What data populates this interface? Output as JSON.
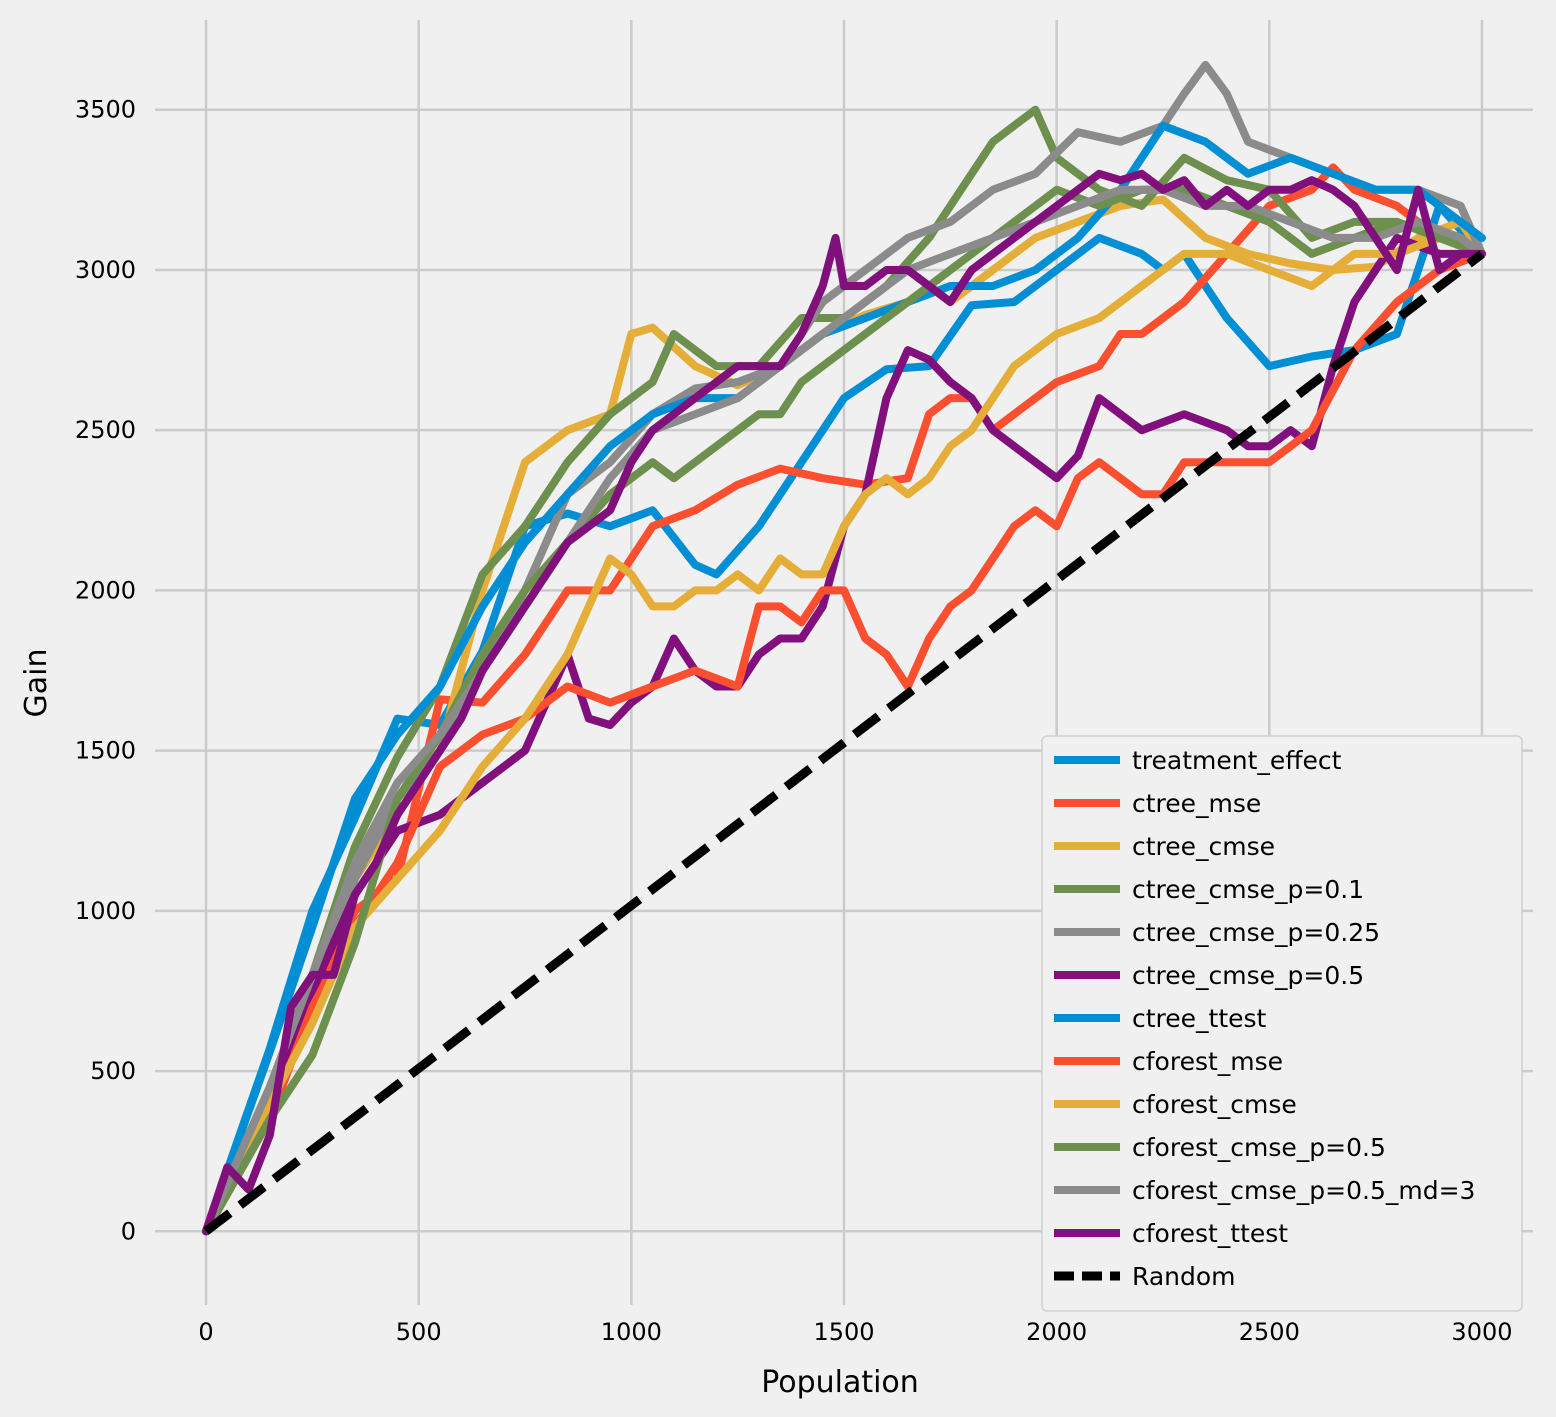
{
  "chart_data": {
    "type": "line",
    "xlabel": "Population",
    "ylabel": "Gain",
    "xlim": [
      -120,
      3120
    ],
    "ylim": [
      -230,
      3780
    ],
    "xticks": [
      0,
      500,
      1000,
      1500,
      2000,
      2500,
      3000
    ],
    "xtick_labels": [
      "0",
      "500",
      "1000",
      "1500",
      "2000",
      "2500",
      "3000"
    ],
    "yticks": [
      0,
      500,
      1000,
      1500,
      2000,
      2500,
      3000,
      3500
    ],
    "ytick_labels": [
      "0",
      "500",
      "1000",
      "1500",
      "2000",
      "2500",
      "3000",
      "3500"
    ],
    "grid": true,
    "legend_position": "lower-right",
    "series": [
      {
        "name": "treatment_effect",
        "color": "#008fd5",
        "x": [
          0,
          150,
          250,
          350,
          450,
          550,
          650,
          750,
          850,
          950,
          1050,
          1150,
          1200,
          1300,
          1400,
          1500,
          1600,
          1700,
          1800,
          1900,
          2000,
          2100,
          2200,
          2250,
          2300,
          2400,
          2500,
          2600,
          2700,
          2800,
          2900,
          3000
        ],
        "y": [
          0,
          570,
          1000,
          1290,
          1600,
          1580,
          1810,
          2200,
          2240,
          2200,
          2250,
          2080,
          2050,
          2200,
          2400,
          2600,
          2690,
          2700,
          2890,
          2900,
          3000,
          3100,
          3050,
          3000,
          3050,
          2850,
          2700,
          2730,
          2750,
          2800,
          3200,
          3050
        ]
      },
      {
        "name": "ctree_mse",
        "color": "#fc4f30",
        "x": [
          0,
          150,
          250,
          350,
          450,
          550,
          650,
          750,
          850,
          950,
          1050,
          1150,
          1250,
          1350,
          1450,
          1550,
          1650,
          1700,
          1750,
          1800,
          1850,
          1900,
          2000,
          2100,
          2150,
          2200,
          2300,
          2400,
          2500,
          2600,
          2650,
          2700,
          2800,
          2900,
          3000
        ],
        "y": [
          0,
          400,
          700,
          1000,
          1100,
          1660,
          1650,
          1800,
          2000,
          2000,
          2200,
          2250,
          2330,
          2380,
          2350,
          2330,
          2350,
          2550,
          2600,
          2600,
          2500,
          2550,
          2650,
          2700,
          2800,
          2800,
          2900,
          3050,
          3200,
          3250,
          3320,
          3250,
          3200,
          3100,
          3050
        ]
      },
      {
        "name": "ctree_cmse",
        "color": "#e5ae38",
        "x": [
          0,
          150,
          250,
          350,
          450,
          550,
          650,
          750,
          850,
          950,
          1000,
          1050,
          1150,
          1250,
          1350,
          1450,
          1550,
          1650,
          1700,
          1750,
          1850,
          1950,
          2050,
          2150,
          2250,
          2350,
          2450,
          2550,
          2650,
          2750,
          2850,
          2950,
          3000
        ],
        "y": [
          0,
          450,
          750,
          1100,
          1300,
          1500,
          2000,
          2400,
          2500,
          2550,
          2800,
          2820,
          2700,
          2640,
          2700,
          2800,
          2860,
          2900,
          2950,
          2900,
          3000,
          3100,
          3150,
          3200,
          3220,
          3100,
          3050,
          3020,
          3000,
          3010,
          3100,
          3150,
          3050
        ]
      },
      {
        "name": "ctree_cmse_p=0.1",
        "color": "#6d904f",
        "x": [
          0,
          150,
          250,
          350,
          450,
          550,
          650,
          750,
          850,
          950,
          1050,
          1100,
          1150,
          1200,
          1300,
          1400,
          1500,
          1600,
          1700,
          1800,
          1850,
          1900,
          1950,
          2000,
          2100,
          2200,
          2300,
          2400,
          2500,
          2600,
          2700,
          2800,
          2900,
          3000
        ],
        "y": [
          0,
          450,
          800,
          1200,
          1480,
          1700,
          2050,
          2200,
          2400,
          2550,
          2650,
          2800,
          2750,
          2700,
          2700,
          2850,
          2850,
          2950,
          3100,
          3300,
          3400,
          3450,
          3500,
          3350,
          3250,
          3200,
          3350,
          3280,
          3250,
          3100,
          3150,
          3150,
          3100,
          3050
        ]
      },
      {
        "name": "ctree_cmse_p=0.25",
        "color": "#8b8b8b",
        "x": [
          0,
          150,
          250,
          350,
          450,
          550,
          650,
          750,
          850,
          950,
          1050,
          1150,
          1250,
          1350,
          1450,
          1550,
          1650,
          1750,
          1850,
          1950,
          2050,
          2150,
          2250,
          2300,
          2350,
          2400,
          2450,
          2550,
          2650,
          2750,
          2850,
          2950,
          3000
        ],
        "y": [
          0,
          400,
          750,
          1100,
          1350,
          1500,
          1750,
          2000,
          2300,
          2400,
          2550,
          2630,
          2650,
          2700,
          2900,
          3000,
          3100,
          3150,
          3250,
          3300,
          3430,
          3400,
          3450,
          3550,
          3640,
          3550,
          3400,
          3350,
          3300,
          3250,
          3250,
          3200,
          3050
        ]
      },
      {
        "name": "ctree_cmse_p=0.5",
        "color": "#810f7c",
        "x": [
          0,
          150,
          250,
          350,
          450,
          550,
          650,
          750,
          800,
          850,
          900,
          950,
          1000,
          1050,
          1100,
          1150,
          1200,
          1250,
          1300,
          1350,
          1400,
          1450,
          1500,
          1550,
          1600,
          1650,
          1700,
          1750,
          1800,
          1850,
          1900,
          1950,
          2000,
          2050,
          2100,
          2150,
          2200,
          2300,
          2400,
          2450,
          2500,
          2550,
          2600,
          2650,
          2700,
          2800,
          2900,
          3000
        ],
        "y": [
          0,
          400,
          750,
          1050,
          1250,
          1300,
          1400,
          1500,
          1650,
          1800,
          1600,
          1580,
          1650,
          1700,
          1850,
          1750,
          1700,
          1700,
          1800,
          1850,
          1850,
          1950,
          2200,
          2300,
          2600,
          2750,
          2720,
          2650,
          2600,
          2500,
          2450,
          2400,
          2350,
          2420,
          2600,
          2550,
          2500,
          2550,
          2500,
          2450,
          2450,
          2500,
          2450,
          2700,
          2900,
          3100,
          3050,
          3050
        ]
      },
      {
        "name": "ctree_ttest",
        "color": "#008fd5",
        "x": [
          0,
          150,
          250,
          350,
          450,
          550,
          650,
          750,
          850,
          950,
          1050,
          1150,
          1250,
          1350,
          1450,
          1550,
          1650,
          1750,
          1850,
          1950,
          2050,
          2150,
          2250,
          2350,
          2450,
          2550,
          2650,
          2750,
          2850,
          2950,
          3000
        ],
        "y": [
          0,
          560,
          950,
          1350,
          1550,
          1700,
          1950,
          2150,
          2300,
          2450,
          2550,
          2600,
          2600,
          2700,
          2800,
          2850,
          2900,
          2950,
          2950,
          3000,
          3100,
          3250,
          3450,
          3400,
          3300,
          3350,
          3300,
          3250,
          3250,
          3150,
          3100
        ]
      },
      {
        "name": "cforest_mse",
        "color": "#fc4f30",
        "x": [
          0,
          150,
          250,
          350,
          450,
          550,
          650,
          750,
          850,
          950,
          1050,
          1150,
          1250,
          1300,
          1350,
          1400,
          1450,
          1500,
          1550,
          1600,
          1650,
          1700,
          1750,
          1800,
          1850,
          1900,
          1950,
          2000,
          2050,
          2100,
          2150,
          2200,
          2250,
          2300,
          2350,
          2400,
          2450,
          2500,
          2550,
          2600,
          2700,
          2800,
          2900,
          3000
        ],
        "y": [
          0,
          350,
          700,
          950,
          1150,
          1450,
          1550,
          1600,
          1700,
          1650,
          1700,
          1750,
          1700,
          1950,
          1950,
          1900,
          2000,
          2000,
          1850,
          1800,
          1700,
          1850,
          1950,
          2000,
          2100,
          2200,
          2250,
          2200,
          2350,
          2400,
          2350,
          2300,
          2300,
          2400,
          2400,
          2400,
          2400,
          2400,
          2450,
          2500,
          2750,
          2900,
          3000,
          3050
        ]
      },
      {
        "name": "cforest_cmse",
        "color": "#e5ae38",
        "x": [
          0,
          150,
          250,
          350,
          450,
          550,
          650,
          750,
          850,
          950,
          1000,
          1050,
          1100,
          1150,
          1200,
          1250,
          1300,
          1350,
          1400,
          1450,
          1500,
          1550,
          1600,
          1650,
          1700,
          1750,
          1800,
          1850,
          1900,
          1950,
          2000,
          2100,
          2200,
          2300,
          2400,
          2500,
          2600,
          2700,
          2800,
          2900,
          3000
        ],
        "y": [
          0,
          400,
          650,
          950,
          1100,
          1250,
          1450,
          1600,
          1800,
          2100,
          2050,
          1950,
          1950,
          2000,
          2000,
          2050,
          2000,
          2100,
          2050,
          2050,
          2200,
          2300,
          2350,
          2300,
          2350,
          2450,
          2500,
          2600,
          2700,
          2750,
          2800,
          2850,
          2950,
          3050,
          3050,
          3000,
          2950,
          3050,
          3050,
          3100,
          3050
        ]
      },
      {
        "name": "cforest_cmse_p=0.5",
        "color": "#6d904f",
        "x": [
          0,
          150,
          250,
          350,
          450,
          550,
          650,
          750,
          850,
          950,
          1050,
          1100,
          1150,
          1200,
          1250,
          1300,
          1350,
          1400,
          1450,
          1500,
          1550,
          1600,
          1650,
          1700,
          1750,
          1800,
          1850,
          1900,
          1950,
          2000,
          2100,
          2200,
          2300,
          2400,
          2500,
          2600,
          2700,
          2800,
          2900,
          3000
        ],
        "y": [
          0,
          350,
          550,
          900,
          1350,
          1550,
          1800,
          2000,
          2150,
          2300,
          2400,
          2350,
          2400,
          2450,
          2500,
          2550,
          2550,
          2650,
          2700,
          2750,
          2800,
          2850,
          2900,
          2950,
          3000,
          3050,
          3100,
          3150,
          3200,
          3250,
          3200,
          3250,
          3250,
          3200,
          3150,
          3050,
          3100,
          3150,
          3100,
          3050
        ]
      },
      {
        "name": "cforest_cmse_p=0.5_md=3",
        "color": "#8b8b8b",
        "x": [
          0,
          150,
          250,
          350,
          450,
          550,
          650,
          750,
          850,
          950,
          1050,
          1150,
          1250,
          1350,
          1450,
          1550,
          1650,
          1750,
          1850,
          1950,
          2050,
          2150,
          2250,
          2350,
          2450,
          2550,
          2650,
          2750,
          2850,
          2950,
          3000
        ],
        "y": [
          0,
          450,
          800,
          1150,
          1400,
          1550,
          1750,
          1950,
          2150,
          2350,
          2500,
          2550,
          2600,
          2700,
          2800,
          2900,
          3000,
          3050,
          3100,
          3150,
          3200,
          3250,
          3250,
          3200,
          3200,
          3150,
          3100,
          3100,
          3150,
          3100,
          3050
        ]
      },
      {
        "name": "cforest_ttest",
        "color": "#810f7c",
        "x": [
          0,
          50,
          100,
          150,
          200,
          250,
          300,
          350,
          400,
          450,
          500,
          550,
          600,
          650,
          700,
          750,
          800,
          850,
          900,
          950,
          1000,
          1050,
          1100,
          1150,
          1200,
          1250,
          1300,
          1350,
          1400,
          1450,
          1480,
          1500,
          1550,
          1600,
          1650,
          1700,
          1750,
          1800,
          1850,
          1900,
          1950,
          2000,
          2050,
          2100,
          2150,
          2200,
          2250,
          2300,
          2350,
          2400,
          2450,
          2500,
          2550,
          2600,
          2650,
          2700,
          2750,
          2800,
          2850,
          2900,
          2950,
          3000
        ],
        "y": [
          0,
          200,
          130,
          300,
          700,
          800,
          800,
          1050,
          1150,
          1300,
          1400,
          1500,
          1600,
          1750,
          1850,
          1950,
          2050,
          2150,
          2200,
          2250,
          2400,
          2500,
          2550,
          2600,
          2650,
          2700,
          2700,
          2700,
          2800,
          2950,
          3100,
          2950,
          2950,
          3000,
          3000,
          2950,
          2900,
          3000,
          3050,
          3100,
          3150,
          3200,
          3250,
          3300,
          3280,
          3300,
          3250,
          3280,
          3200,
          3250,
          3200,
          3250,
          3250,
          3280,
          3250,
          3200,
          3100,
          3000,
          3250,
          3000,
          3050,
          3050
        ]
      },
      {
        "name": "Random",
        "color": "#000000",
        "dashed": true,
        "x": [
          0,
          3000
        ],
        "y": [
          0,
          3050
        ]
      }
    ]
  }
}
